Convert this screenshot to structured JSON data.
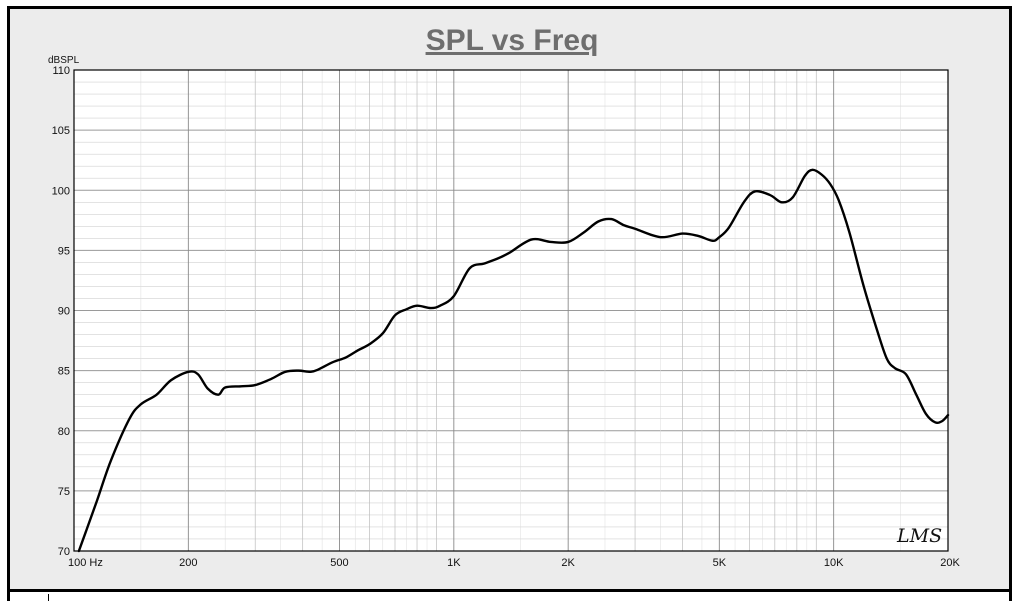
{
  "chart_data": {
    "type": "line",
    "title": "SPL vs Freq",
    "ylabel": "dBSPL",
    "xlabel": "",
    "x_scale": "log",
    "xlim": [
      100,
      20000
    ],
    "ylim": [
      70,
      110
    ],
    "grid": true,
    "y_ticks": [
      "70",
      "75",
      "80",
      "85",
      "90",
      "95",
      "100",
      "105",
      "110"
    ],
    "x_ticks": [
      {
        "value": 100,
        "label": "100  Hz"
      },
      {
        "value": 200,
        "label": "200"
      },
      {
        "value": 500,
        "label": "500"
      },
      {
        "value": 1000,
        "label": "1K"
      },
      {
        "value": 2000,
        "label": "2K"
      },
      {
        "value": 5000,
        "label": "5K"
      },
      {
        "value": 10000,
        "label": "10K"
      },
      {
        "value": 20000,
        "label": "20K"
      }
    ],
    "watermark": "LMS",
    "line_color": "#000000",
    "series": [
      {
        "x": [
          103,
          108,
          115,
          125,
          140,
          150,
          165,
          180,
          200,
          212,
          225,
          240,
          250,
          275,
          300,
          330,
          360,
          390,
          420,
          440,
          480,
          520,
          560,
          600,
          650,
          700,
          750,
          800,
          870,
          920,
          1000,
          1100,
          1200,
          1300,
          1400,
          1600,
          1800,
          2000,
          2200,
          2400,
          2600,
          2800,
          3000,
          3500,
          4000,
          4400,
          4800,
          5000,
          5300,
          5800,
          6200,
          6800,
          7300,
          7800,
          8400,
          8800,
          9300,
          9800,
          10300,
          11000,
          12000,
          13000,
          13800,
          14500,
          15500,
          16500,
          17500,
          18500,
          19300,
          20000
        ],
        "y": [
          70.0,
          71.8,
          74.2,
          77.5,
          81.0,
          82.2,
          83.0,
          84.2,
          84.9,
          84.7,
          83.5,
          83.0,
          83.6,
          83.7,
          83.8,
          84.3,
          84.9,
          85.0,
          84.9,
          85.1,
          85.7,
          86.1,
          86.7,
          87.2,
          88.1,
          89.6,
          90.1,
          90.4,
          90.2,
          90.4,
          91.2,
          93.5,
          93.9,
          94.3,
          94.8,
          95.9,
          95.7,
          95.7,
          96.5,
          97.4,
          97.6,
          97.1,
          96.8,
          96.1,
          96.4,
          96.2,
          95.8,
          96.1,
          96.9,
          99.0,
          99.9,
          99.6,
          99.0,
          99.4,
          101.2,
          101.7,
          101.3,
          100.5,
          99.2,
          96.5,
          92.0,
          88.4,
          86.0,
          85.2,
          84.7,
          83.0,
          81.4,
          80.7,
          80.8,
          81.3
        ]
      }
    ]
  }
}
